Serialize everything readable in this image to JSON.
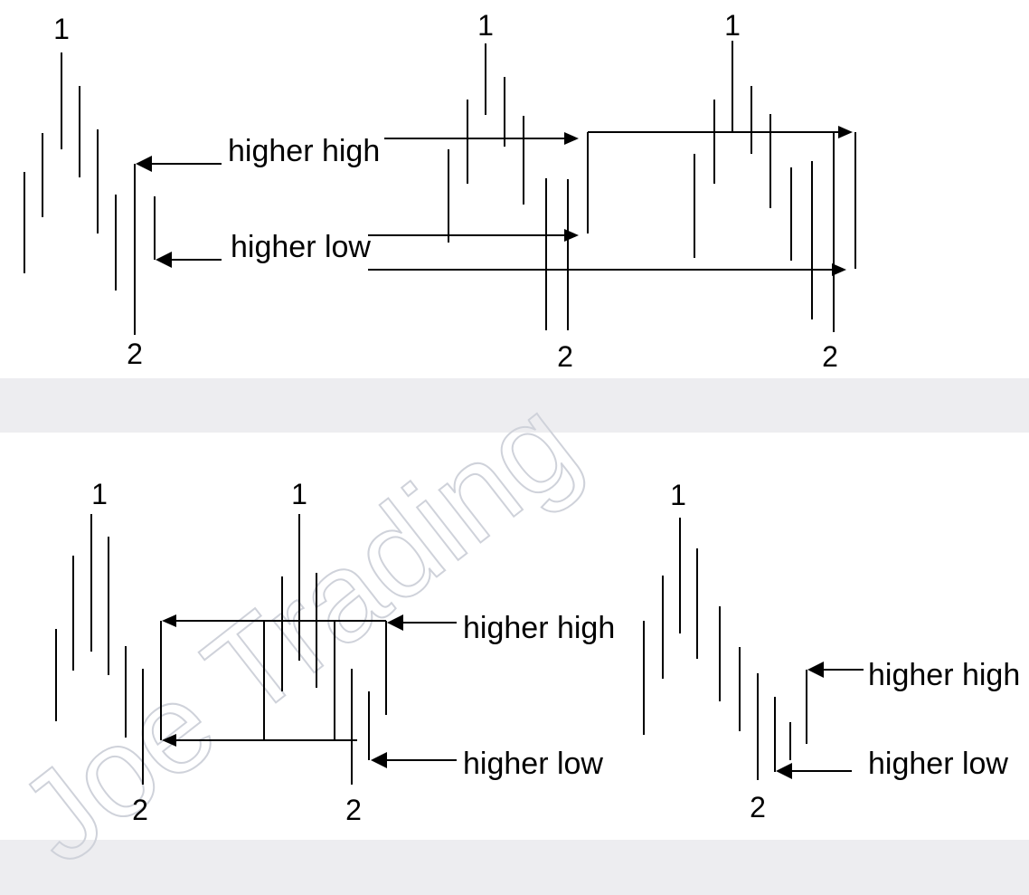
{
  "labels": {
    "higher_high": "higher high",
    "higher_low": "higher low",
    "point_one": "1",
    "point_two": "2"
  },
  "watermark": {
    "text": "Joe Trading",
    "color": "#cfd2da"
  },
  "colors": {
    "ink": "#000000",
    "background": "#ffffff",
    "gutter": "#ededf0"
  }
}
